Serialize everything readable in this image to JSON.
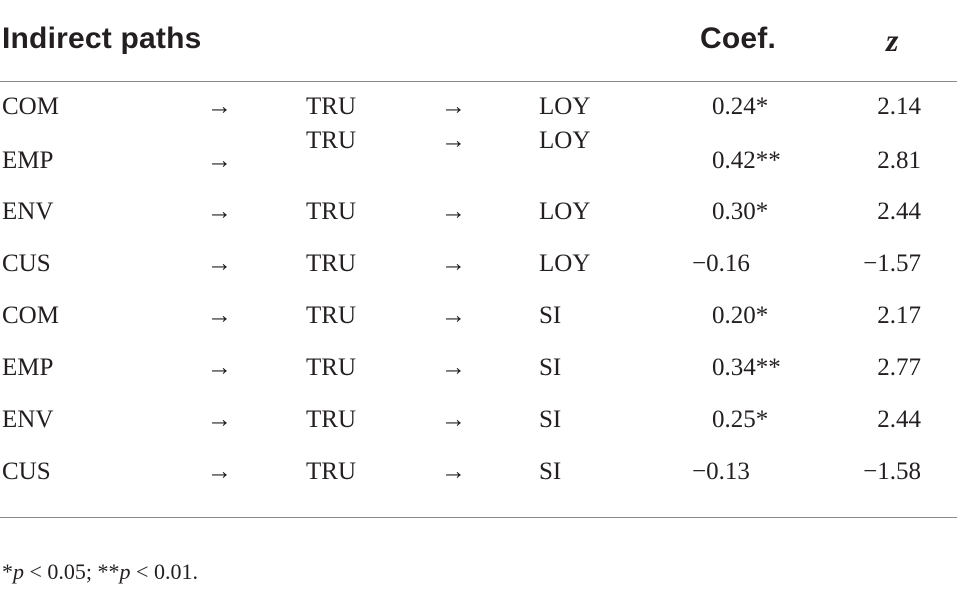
{
  "header": {
    "title": "Indirect paths",
    "coef": "Coef.",
    "z": "z"
  },
  "rows": [
    {
      "from": "COM",
      "arrow1": "→",
      "via": "TRU",
      "arrow2": "→",
      "to": "LOY",
      "coef": "0.24*",
      "coef_pad": " ",
      "z": "2.14"
    },
    {
      "from": "EMP",
      "arrow1": "→",
      "via": "TRU",
      "arrow2": "→",
      "to": "LOY",
      "coef": "0.42**",
      "coef_pad": " ",
      "z": "2.81"
    },
    {
      "from": "ENV",
      "arrow1": "→",
      "via": "TRU",
      "arrow2": "→",
      "to": "LOY",
      "coef": "0.30*",
      "coef_pad": " ",
      "z": "2.44"
    },
    {
      "from": "CUS",
      "arrow1": "→",
      "via": "TRU",
      "arrow2": "→",
      "to": "LOY",
      "coef": "−0.16",
      "coef_pad": "",
      "z": "−1.57"
    },
    {
      "from": "COM",
      "arrow1": "→",
      "via": "TRU",
      "arrow2": "→",
      "to": "SI",
      "coef": "0.20*",
      "coef_pad": " ",
      "z": "2.17"
    },
    {
      "from": "EMP",
      "arrow1": "→",
      "via": "TRU",
      "arrow2": "→",
      "to": "SI",
      "coef": "0.34**",
      "coef_pad": " ",
      "z": "2.77"
    },
    {
      "from": "ENV",
      "arrow1": "→",
      "via": "TRU",
      "arrow2": "→",
      "to": "SI",
      "coef": "0.25*",
      "coef_pad": " ",
      "z": "2.44"
    },
    {
      "from": "CUS",
      "arrow1": "→",
      "via": "TRU",
      "arrow2": "→",
      "to": "SI",
      "coef": "−0.13",
      "coef_pad": "",
      "z": "−1.58"
    }
  ],
  "footnote": {
    "star1": "*",
    "p1": "p",
    "t1": " < 0.05; ",
    "star2": "**",
    "p2": "p",
    "t2": " < 0.01."
  }
}
